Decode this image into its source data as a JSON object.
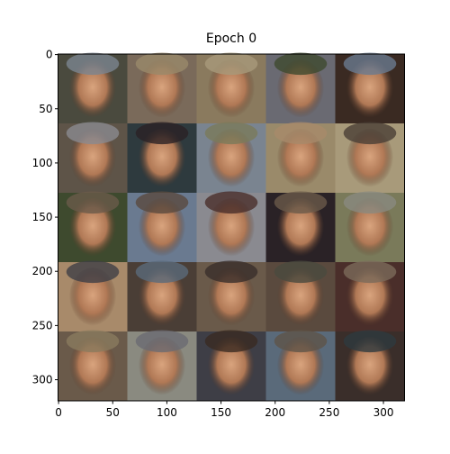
{
  "chart_data": {
    "type": "image",
    "title": "Epoch 0",
    "xlim": [
      -0.5,
      319.5
    ],
    "ylim": [
      319.5,
      -0.5
    ],
    "xticks": [
      0,
      50,
      100,
      150,
      200,
      250,
      300
    ],
    "yticks": [
      0,
      50,
      100,
      150,
      200,
      250,
      300
    ]
  }
}
